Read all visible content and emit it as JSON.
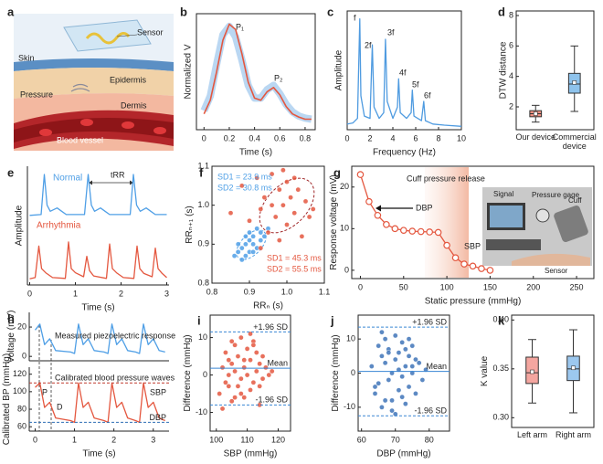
{
  "illustration": {
    "panel": "a",
    "labels": [
      "Sensor",
      "Skin",
      "Epidermis",
      "Pressure",
      "Dermis",
      "Blood vessel"
    ]
  },
  "chart_data": [
    {
      "panel": "b",
      "type": "line",
      "xlabel": "Time (s)",
      "ylabel": "Normalized V",
      "x": [
        0,
        0.05,
        0.1,
        0.15,
        0.2,
        0.25,
        0.3,
        0.35,
        0.4,
        0.45,
        0.5,
        0.55,
        0.6,
        0.65,
        0.7,
        0.75,
        0.8,
        0.85
      ],
      "xlim": [
        -0.06,
        0.88
      ],
      "ylim": [
        0,
        1.1
      ],
      "xticks": [
        0,
        0.2,
        0.4,
        0.6,
        0.8
      ],
      "series": [
        {
          "color": "#a9cdef",
          "values": [
            0.18,
            0.32,
            0.62,
            0.9,
            0.98,
            0.88,
            0.66,
            0.42,
            0.3,
            0.3,
            0.38,
            0.42,
            0.34,
            0.24,
            0.17,
            0.13,
            0.11,
            0.1
          ]
        },
        {
          "color": "#e4573f",
          "values": [
            0.15,
            0.28,
            0.55,
            0.85,
            1.0,
            0.95,
            0.72,
            0.45,
            0.3,
            0.28,
            0.36,
            0.4,
            0.33,
            0.22,
            0.15,
            0.12,
            0.1,
            0.1
          ]
        }
      ],
      "annotations": [
        "P₁",
        "P₂"
      ]
    },
    {
      "panel": "c",
      "type": "line",
      "xlabel": "Frequency (Hz)",
      "ylabel": "Amplitude",
      "x": [
        0,
        0.5,
        0.9,
        1.1,
        1.2,
        1.5,
        2.0,
        2.2,
        2.35,
        2.8,
        3.2,
        3.35,
        3.5,
        4.0,
        4.4,
        4.5,
        4.65,
        5.2,
        5.6,
        5.7,
        5.85,
        6.5,
        6.7,
        6.85,
        7.5,
        8.5,
        10
      ],
      "xlim": [
        0,
        10
      ],
      "ylim": [
        0,
        1.05
      ],
      "xticks": [
        0,
        2,
        4,
        6,
        8,
        10
      ],
      "series": [
        {
          "color": "#4f9be0",
          "values": [
            0.05,
            0.06,
            0.1,
            0.98,
            0.3,
            0.12,
            0.1,
            0.75,
            0.2,
            0.1,
            0.15,
            0.8,
            0.25,
            0.1,
            0.2,
            0.45,
            0.15,
            0.1,
            0.15,
            0.35,
            0.12,
            0.08,
            0.25,
            0.08,
            0.05,
            0.04,
            0.03
          ]
        }
      ],
      "annotations": [
        "f",
        "2f",
        "3f",
        "4f",
        "5f",
        "6f"
      ]
    },
    {
      "panel": "d",
      "type": "box",
      "ylabel": "DTW distance",
      "categories": [
        "Our device",
        "Commercial device"
      ],
      "ylim": [
        0.5,
        8.3
      ],
      "yticks": [
        2,
        4,
        6,
        8
      ],
      "colors": [
        "#ef8f80",
        "#8ec3ec"
      ],
      "boxes": [
        {
          "low": 1.0,
          "q1": 1.35,
          "median": 1.55,
          "q3": 1.75,
          "high": 2.1,
          "mean": 1.55
        },
        {
          "low": 1.7,
          "q1": 2.9,
          "median": 3.5,
          "q3": 4.2,
          "high": 6.0,
          "mean": 3.6
        }
      ]
    },
    {
      "panel": "e",
      "type": "line",
      "xlabel": "Time (s)",
      "ylabel": "Amplitude",
      "xlim": [
        -0.05,
        3.05
      ],
      "ylim": [
        -0.1,
        2.8
      ],
      "xticks": [
        0,
        1,
        2,
        3
      ],
      "series": [
        {
          "name": "Normal",
          "color": "#4f9fe6",
          "x": [
            0,
            0.25,
            0.32,
            0.38,
            0.45,
            0.6,
            0.7,
            0.8,
            1.2,
            1.28,
            1.35,
            1.42,
            1.55,
            1.65,
            1.75,
            2.2,
            2.27,
            2.34,
            2.42,
            2.55,
            2.65,
            2.75,
            3.0
          ],
          "values": [
            1.6,
            1.62,
            2.6,
            1.85,
            1.7,
            1.78,
            1.7,
            1.62,
            1.62,
            2.6,
            1.85,
            1.7,
            1.78,
            1.7,
            1.62,
            1.62,
            2.6,
            1.85,
            1.7,
            1.78,
            1.7,
            1.62,
            1.62
          ]
        },
        {
          "name": "Arrhythmia",
          "color": "#e4573f",
          "x": [
            0,
            0.12,
            0.2,
            0.26,
            0.35,
            0.5,
            0.78,
            0.85,
            0.91,
            1.0,
            1.18,
            1.25,
            1.31,
            1.4,
            1.68,
            1.75,
            1.81,
            1.9,
            2.05,
            2.28,
            2.35,
            2.41,
            2.5,
            2.68,
            2.75,
            2.81,
            2.9,
            3.0
          ],
          "values": [
            0.05,
            0.08,
            0.85,
            0.3,
            0.2,
            0.08,
            0.06,
            0.95,
            0.3,
            0.2,
            0.1,
            0.6,
            0.25,
            0.12,
            0.06,
            0.9,
            0.3,
            0.2,
            0.08,
            0.06,
            0.85,
            0.3,
            0.18,
            0.1,
            0.8,
            0.3,
            0.18,
            0.08
          ]
        }
      ],
      "annotations": [
        "tRR"
      ]
    },
    {
      "panel": "f",
      "type": "scatter",
      "xlabel": "RRₙ (s)",
      "ylabel": "RRₙ₊₁ (s)",
      "xlim": [
        0.8,
        1.1
      ],
      "ylim": [
        0.8,
        1.1
      ],
      "xticks": [
        0.8,
        0.9,
        {
          "value": 1,
          "label": "1.0"
        },
        1.1
      ],
      "yticks": [
        0.8,
        0.9,
        {
          "value": 1,
          "label": "1.0"
        },
        1.1
      ],
      "series": [
        {
          "color": "#4f9fe6",
          "x": [
            0.86,
            0.87,
            0.88,
            0.88,
            0.89,
            0.89,
            0.9,
            0.9,
            0.9,
            0.91,
            0.91,
            0.92,
            0.92,
            0.93,
            0.93,
            0.94,
            0.87,
            0.89,
            0.91,
            0.95
          ],
          "values": [
            0.87,
            0.88,
            0.86,
            0.89,
            0.9,
            0.87,
            0.88,
            0.91,
            0.93,
            0.9,
            0.92,
            0.89,
            0.94,
            0.91,
            0.93,
            0.92,
            0.9,
            0.92,
            0.88,
            0.94
          ]
        },
        {
          "color": "#e4573f",
          "x": [
            0.85,
            0.88,
            0.9,
            0.92,
            0.93,
            0.94,
            0.95,
            0.96,
            0.97,
            0.98,
            0.98,
            0.99,
            1.0,
            1.0,
            1.01,
            1.02,
            1.03,
            1.04,
            1.05,
            1.06,
            0.96,
            0.99,
            1.02,
            0.93,
            1.07
          ],
          "values": [
            0.98,
            1.05,
            0.96,
            1.07,
            0.99,
            1.02,
            0.93,
            1.08,
            0.97,
            1.04,
            0.91,
            1.0,
            1.06,
            0.95,
            1.02,
            0.98,
            1.04,
            0.92,
            1.01,
            0.97,
            1.0,
            1.09,
            1.07,
            0.89,
            0.99
          ]
        }
      ],
      "annotations": [
        "SD1 = 23.9 ms",
        "SD2 = 30.8 ms",
        "SD1 = 45.3 ms",
        "SD2 = 55.5 ms"
      ]
    },
    {
      "panel": "g",
      "type": "line",
      "markers": true,
      "xlabel": "Static pressure (mmHg)",
      "ylabel": "Response voltage (mV)",
      "x": [
        0,
        10,
        20,
        30,
        40,
        50,
        60,
        70,
        80,
        90,
        100,
        110,
        120,
        130,
        140,
        150
      ],
      "xlim": [
        -10,
        270
      ],
      "ylim": [
        -2,
        25
      ],
      "xticks": [
        0,
        50,
        100,
        150,
        200,
        250
      ],
      "yticks": [
        0,
        10,
        20
      ],
      "series": [
        {
          "color": "#e4573f",
          "values": [
            23,
            16.5,
            13.2,
            11,
            10,
            9.6,
            9.4,
            9.3,
            9.2,
            9.1,
            6,
            3,
            1.5,
            1,
            0.4,
            0
          ],
          "errors": [
            0.8,
            0.5,
            0.4,
            0.4,
            0.3,
            0.3,
            0.3,
            0.3,
            0.3,
            0.3,
            0.4,
            0.4,
            0.3,
            0.3,
            0.3,
            0.3
          ]
        }
      ],
      "annotations": [
        "Cuff pressure release",
        "DBP",
        "SBP"
      ],
      "photo_labels": [
        "Signal",
        "Pressure gage",
        "Cuff",
        "Sensor"
      ]
    },
    {
      "panel": "h",
      "type": "line",
      "ylabel": "Voltage (mV)",
      "x": [
        0,
        0.12,
        0.24,
        0.37,
        0.52,
        0.9,
        1.0,
        1.1,
        1.22,
        1.35,
        1.5,
        1.75,
        1.85,
        1.95,
        2.07,
        2.2,
        2.35,
        2.55,
        2.65,
        2.75,
        2.87,
        3.0,
        3.15,
        3.3
      ],
      "xlim": [
        -0.15,
        3.4
      ],
      "ylim": [
        -3,
        30
      ],
      "yticks": [
        0,
        20
      ],
      "series": [
        {
          "color": "#4f9fe6",
          "values": [
            18,
            22,
            8,
            12,
            4,
            3,
            2,
            22,
            8,
            12,
            4,
            3,
            2,
            22,
            8,
            12,
            4,
            3,
            2,
            22,
            8,
            12,
            4,
            3
          ]
        }
      ],
      "annotations": [
        "Measured piezoelectric response"
      ]
    },
    {
      "type": "line",
      "xlabel": "Time (s)",
      "ylabel": "Calibrated BP (mmHg)",
      "x": [
        0,
        0.12,
        0.24,
        0.37,
        0.52,
        0.9,
        1.0,
        1.1,
        1.22,
        1.35,
        1.5,
        1.75,
        1.85,
        1.95,
        2.07,
        2.2,
        2.35,
        2.55,
        2.65,
        2.75,
        2.87,
        3.0,
        3.15,
        3.3
      ],
      "xlim": [
        -0.15,
        3.4
      ],
      "ylim": [
        55,
        128
      ],
      "xticks": [
        0,
        1,
        2,
        3
      ],
      "yticks": [
        60,
        80,
        100,
        120
      ],
      "series": [
        {
          "color": "#e4573f",
          "values": [
            105,
            110,
            82,
            88,
            70,
            67,
            65,
            110,
            82,
            88,
            70,
            67,
            65,
            110,
            82,
            88,
            70,
            67,
            65,
            110,
            82,
            88,
            70,
            67
          ]
        }
      ],
      "hlines": [
        {
          "label": "SBP",
          "value": 110,
          "color": "#c0392b"
        },
        {
          "label": "DBP",
          "value": 65,
          "color": "#2f6fb5"
        }
      ],
      "annotations": [
        "Calibrated blood pressure waves",
        "P",
        "D"
      ]
    },
    {
      "panel": "i",
      "type": "scatter",
      "xlabel": "SBP (mmHg)",
      "ylabel": "Difference (mmHg)",
      "xlim": [
        98,
        124
      ],
      "ylim": [
        -15,
        16
      ],
      "xticks": [
        100,
        110,
        120
      ],
      "yticks": [
        -10,
        0,
        10
      ],
      "series": [
        {
          "color": "#e4573f",
          "x": [
            101,
            102,
            103,
            103,
            104,
            104,
            105,
            105,
            106,
            106,
            107,
            107,
            108,
            108,
            109,
            109,
            110,
            110,
            111,
            111,
            112,
            112,
            113,
            113,
            114,
            114,
            115,
            115,
            116,
            117,
            102,
            105,
            108,
            111,
            114,
            106,
            109,
            112,
            104,
            118
          ],
          "values": [
            -5,
            2,
            6,
            -2,
            0,
            4,
            -7,
            3,
            8,
            1,
            -3,
            5,
            10,
            -1,
            2,
            -6,
            7,
            0,
            -4,
            4,
            9,
            -2,
            1,
            6,
            -8,
            3,
            5,
            -1,
            2,
            0,
            -9,
            9,
            -5,
            11,
            -3,
            -6,
            4,
            8,
            -3,
            1
          ]
        }
      ],
      "hlines": [
        {
          "label": "+1.96 SD",
          "value": 11.5,
          "color": "#3a86d4"
        },
        {
          "label": "Mean",
          "value": 1.8,
          "color": "#3a86d4"
        },
        {
          "label": "-1.96 SD",
          "value": -8,
          "color": "#3a86d4"
        }
      ]
    },
    {
      "panel": "j",
      "type": "scatter",
      "xlabel": "DBP (mmHg)",
      "ylabel": "Difference (mmHg)",
      "xlim": [
        59,
        86
      ],
      "ylim": [
        -17,
        17
      ],
      "xticks": [
        60,
        70,
        80
      ],
      "yticks": [
        -10,
        0,
        10
      ],
      "series": [
        {
          "color": "#3f74b8",
          "x": [
            63,
            64,
            65,
            65,
            66,
            66,
            67,
            67,
            68,
            68,
            69,
            69,
            70,
            70,
            71,
            71,
            72,
            72,
            73,
            73,
            74,
            74,
            75,
            75,
            76,
            77,
            78,
            79,
            66,
            70,
            72,
            68,
            74,
            64,
            76,
            69,
            71,
            73,
            67,
            75
          ],
          "values": [
            2,
            -6,
            8,
            -3,
            5,
            -10,
            3,
            10,
            -2,
            7,
            0,
            -8,
            11,
            4,
            -5,
            6,
            9,
            -1,
            2,
            -9,
            5,
            -4,
            8,
            0,
            -6,
            3,
            -2,
            1,
            12,
            -12,
            -7,
            6,
            10,
            -4,
            4,
            -11,
            1,
            7,
            -8,
            2
          ]
        }
      ],
      "hlines": [
        {
          "label": "+1.96 SD",
          "value": 13.5,
          "color": "#3a86d4"
        },
        {
          "label": "Mean",
          "value": 0.5,
          "color": "#3a86d4"
        },
        {
          "label": "-1.96 SD",
          "value": -12.5,
          "color": "#3a86d4"
        }
      ]
    },
    {
      "panel": "k",
      "type": "box",
      "ylabel": "K value",
      "categories": [
        "Left arm",
        "Right arm"
      ],
      "ylim": [
        0.29,
        0.405
      ],
      "yticks": [
        {
          "value": 0.3,
          "label": "0.30"
        },
        {
          "value": 0.35,
          "label": "0.35"
        },
        {
          "value": 0.4,
          "label": "0.40"
        }
      ],
      "colors": [
        "#f4a6a0",
        "#9cc8ef"
      ],
      "boxes": [
        {
          "low": 0.315,
          "q1": 0.335,
          "median": 0.346,
          "q3": 0.362,
          "high": 0.38,
          "mean": 0.347
        },
        {
          "low": 0.305,
          "q1": 0.338,
          "median": 0.35,
          "q3": 0.363,
          "high": 0.39,
          "mean": 0.351
        }
      ]
    }
  ]
}
